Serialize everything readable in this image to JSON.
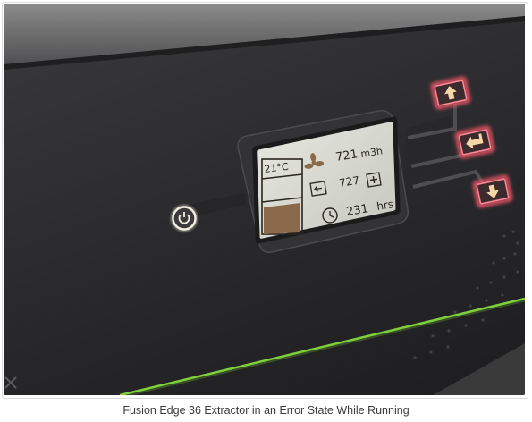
{
  "caption": "Fusion Edge 36 Extractor in an Error State While Running",
  "lcd": {
    "temperature": "21°C",
    "airflow_value": "721",
    "airflow_unit": "m3h",
    "pressure_value": "727",
    "hours_value": "231",
    "hours_unit": "hrs"
  },
  "colors": {
    "panel": "#2f2f31",
    "lcd_screen": "#d6d7cf",
    "accent_green": "#7fd13b",
    "button_glow": "#ff5a6e",
    "button_face": "#f3d7a6",
    "fill_bar": "#8a6a4a"
  },
  "icons": [
    "power-icon",
    "fan-icon",
    "filter-icon",
    "clock-icon",
    "plus-icon",
    "arrow-left-icon",
    "up-arrow-icon",
    "enter-icon",
    "down-arrow-icon"
  ]
}
